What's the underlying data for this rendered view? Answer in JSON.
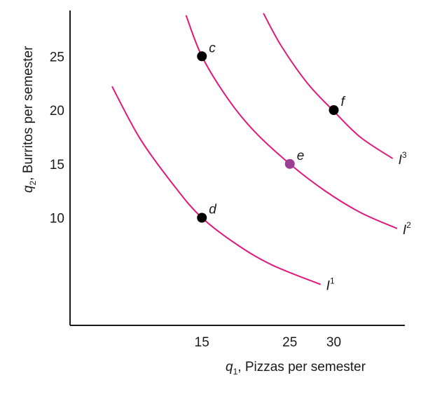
{
  "chart_data": {
    "type": "line",
    "title": "",
    "xlabel": {
      "var": "q",
      "sub": "1",
      "text": ", Pizzas per semester"
    },
    "ylabel": {
      "var": "q",
      "sub": "2",
      "text": ", Burritos per semester"
    },
    "xlim": [
      0,
      40
    ],
    "ylim": [
      0,
      30
    ],
    "x_ticks": [
      15,
      25,
      30
    ],
    "y_ticks": [
      10,
      15,
      20,
      25
    ],
    "curve_color": "#e0197d",
    "series": [
      {
        "name": "I",
        "sup": "1",
        "x": [
          4.78,
          8,
          12,
          15,
          19,
          23,
          28.5
        ],
        "y": [
          22.2,
          17.3,
          12.8,
          10,
          7.5,
          5.6,
          3.8
        ]
      },
      {
        "name": "I",
        "sup": "2",
        "x": [
          13.2,
          15,
          18,
          21,
          25,
          29,
          33,
          37.2
        ],
        "y": [
          28.8,
          25,
          21,
          18,
          15,
          12.5,
          10.5,
          9
        ]
      },
      {
        "name": "I",
        "sup": "3",
        "x": [
          22,
          24,
          27,
          30,
          33,
          36.7
        ],
        "y": [
          29,
          26,
          22.5,
          19.9,
          17.5,
          15.5
        ]
      }
    ],
    "points": [
      {
        "label": "c",
        "x": 15,
        "y": 25,
        "color": "#000000"
      },
      {
        "label": "d",
        "x": 15,
        "y": 10,
        "color": "#000000"
      },
      {
        "label": "e",
        "x": 25,
        "y": 15,
        "color": "#9b3d92"
      },
      {
        "label": "f",
        "x": 30,
        "y": 20,
        "color": "#000000"
      }
    ]
  }
}
